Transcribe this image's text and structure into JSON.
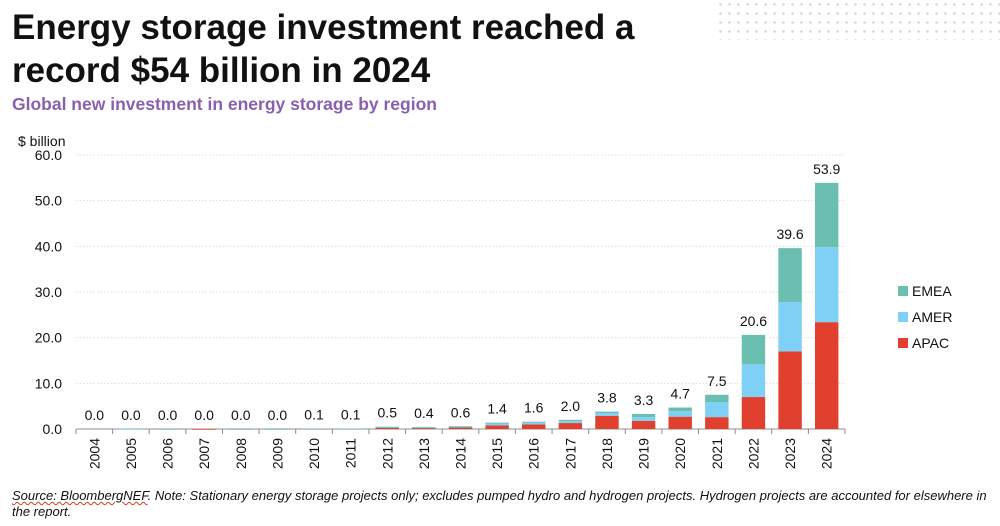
{
  "title": "Energy storage investment reached a record $54 billion in 2024",
  "subtitle": "Global new investment in energy storage by region",
  "source": {
    "label": "Source: BloombergNEF",
    "note": ". Note: Stationary energy storage projects only; excludes pumped hydro and hydrogen projects. Hydrogen projects are accounted for elsewhere in the report."
  },
  "chart_data": {
    "type": "bar",
    "stacked": true,
    "title": "Global new investment in energy storage by region",
    "ylabel": "$ billion",
    "xlabel": "",
    "ylim": [
      0,
      60
    ],
    "yticks": [
      0,
      10,
      20,
      30,
      40,
      50,
      60
    ],
    "ytick_labels": [
      "0.0",
      "10.0",
      "20.0",
      "30.0",
      "40.0",
      "50.0",
      "60.0"
    ],
    "grid": true,
    "legend_position": "right",
    "categories": [
      "2004",
      "2005",
      "2006",
      "2007",
      "2008",
      "2009",
      "2010",
      "2011",
      "2012",
      "2013",
      "2014",
      "2015",
      "2016",
      "2017",
      "2018",
      "2019",
      "2020",
      "2021",
      "2022",
      "2023",
      "2024"
    ],
    "series": [
      {
        "name": "APAC",
        "color": "#e2402f",
        "values": [
          0,
          0,
          0,
          0.02,
          0,
          0,
          0.03,
          0.04,
          0.3,
          0.3,
          0.4,
          0.8,
          1.0,
          1.3,
          2.9,
          1.8,
          2.7,
          2.6,
          7.0,
          17.0,
          23.4
        ]
      },
      {
        "name": "AMER",
        "color": "#7fd0f5",
        "values": [
          0,
          0.02,
          0,
          0,
          0,
          0,
          0.03,
          0.03,
          0.1,
          0.05,
          0.1,
          0.4,
          0.4,
          0.4,
          0.6,
          0.8,
          1.2,
          3.3,
          7.2,
          10.8,
          16.4
        ]
      },
      {
        "name": "EMEA",
        "color": "#6bbfb0",
        "values": [
          0,
          0,
          0.02,
          0,
          0.01,
          0.01,
          0.04,
          0.03,
          0.1,
          0.05,
          0.1,
          0.2,
          0.2,
          0.3,
          0.3,
          0.7,
          0.8,
          1.6,
          6.4,
          11.8,
          14.1
        ]
      }
    ],
    "totals": [
      "0.0",
      "0.0",
      "0.0",
      "0.0",
      "0.0",
      "0.0",
      "0.1",
      "0.1",
      "0.5",
      "0.4",
      "0.6",
      "1.4",
      "1.6",
      "2.0",
      "3.8",
      "3.3",
      "4.7",
      "7.5",
      "20.6",
      "39.6",
      "53.9"
    ],
    "legend": [
      {
        "name": "EMEA",
        "color": "#6bbfb0"
      },
      {
        "name": "AMER",
        "color": "#7fd0f5"
      },
      {
        "name": "APAC",
        "color": "#e2402f"
      }
    ]
  }
}
